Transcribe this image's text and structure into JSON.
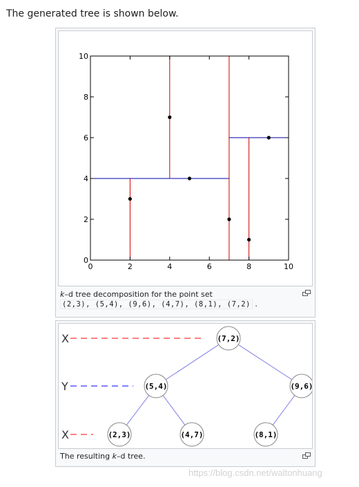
{
  "intro_text": "The generated tree is shown below.",
  "figure1": {
    "caption_kd": "k",
    "caption_rest": "–d tree decomposition for the point set",
    "caption_points": "(2,3), (5,4), (9,6), (4,7), (8,1), (7,2)",
    "caption_period": "."
  },
  "chart_data": {
    "type": "scatter",
    "x": [
      2,
      5,
      9,
      4,
      8,
      7
    ],
    "y": [
      3,
      4,
      6,
      7,
      1,
      2
    ],
    "xlim": [
      0,
      10
    ],
    "ylim": [
      0,
      10
    ],
    "x_ticks": [
      "0",
      "2",
      "4",
      "6",
      "8",
      "10"
    ],
    "y_ticks": [
      "0",
      "2",
      "4",
      "6",
      "8",
      "10"
    ],
    "grid": false,
    "splits": [
      {
        "axis": "x",
        "at": 7,
        "from": 0,
        "to": 10,
        "color": "#cc0000"
      },
      {
        "axis": "y",
        "at": 4,
        "from": 0,
        "to": 7,
        "color": "#0000aa"
      },
      {
        "axis": "y",
        "at": 6,
        "from": 7,
        "to": 10,
        "color": "#0000aa"
      },
      {
        "axis": "x",
        "at": 2,
        "from": 0,
        "to": 4,
        "color": "#cc0000"
      },
      {
        "axis": "x",
        "at": 4,
        "from": 4,
        "to": 10,
        "color": "#cc0000"
      },
      {
        "axis": "x",
        "at": 8,
        "from": 0,
        "to": 6,
        "color": "#cc0000"
      }
    ]
  },
  "figure2": {
    "caption_pre": "The resulting ",
    "caption_kd": "k",
    "caption_post": "–d tree.",
    "level_labels": [
      "X",
      "Y",
      "X"
    ],
    "level_colors": [
      "#ff0000",
      "#0000ff",
      "#ff0000"
    ],
    "nodes": [
      "(7,2)",
      "(5,4)",
      "(9,6)",
      "(2,3)",
      "(4,7)",
      "(8,1)"
    ]
  },
  "watermark": "https://blog.csdn.net/waltonhuang"
}
